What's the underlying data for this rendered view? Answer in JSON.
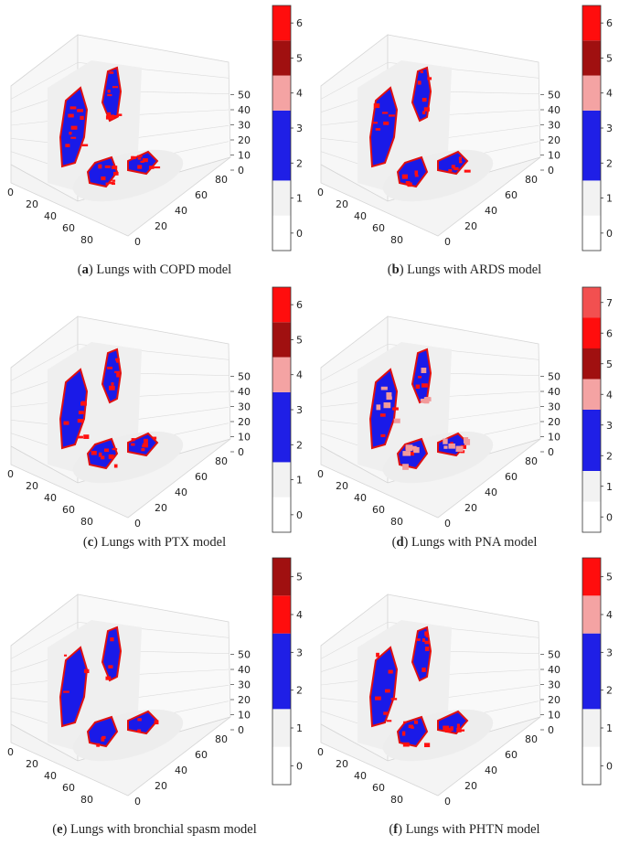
{
  "panels": [
    {
      "letter": "a",
      "caption_rest": "Lungs with COPD model",
      "cbar_ticks": [
        "0",
        "1",
        "2",
        "3",
        "4",
        "5",
        "6"
      ],
      "cbar_bands": [
        [
          "#ffffff",
          0,
          1
        ],
        [
          "#f2f2f2",
          1,
          2
        ],
        [
          "#1f1fe6",
          2,
          4
        ],
        [
          "#f4a3a3",
          4,
          5
        ],
        [
          "#a01010",
          5,
          6
        ],
        [
          "#ff0d0d",
          6,
          7
        ]
      ],
      "z_ticks": [
        "0",
        "10",
        "20",
        "30",
        "40",
        "50"
      ],
      "x_ticks": [
        "0",
        "20",
        "40",
        "60",
        "80"
      ],
      "y_ticks": [
        "0",
        "20",
        "40",
        "60",
        "80"
      ],
      "red": 0.45,
      "pink": 0.0
    },
    {
      "letter": "b",
      "caption_rest": "Lungs with ARDS model",
      "cbar_ticks": [
        "0",
        "1",
        "2",
        "3",
        "4",
        "5",
        "6"
      ],
      "cbar_bands": [
        [
          "#ffffff",
          0,
          1
        ],
        [
          "#f2f2f2",
          1,
          2
        ],
        [
          "#1f1fe6",
          2,
          4
        ],
        [
          "#f4a3a3",
          4,
          5
        ],
        [
          "#a01010",
          5,
          6
        ],
        [
          "#ff0d0d",
          6,
          7
        ]
      ],
      "z_ticks": [
        "0",
        "10",
        "20",
        "30",
        "40",
        "50"
      ],
      "x_ticks": [
        "0",
        "20",
        "40",
        "60",
        "80"
      ],
      "y_ticks": [
        "0",
        "20",
        "40",
        "60",
        "80"
      ],
      "red": 0.3,
      "pink": 0.0
    },
    {
      "letter": "c",
      "caption_rest": "Lungs with PTX model",
      "cbar_ticks": [
        "0",
        "1",
        "2",
        "3",
        "4",
        "5",
        "6"
      ],
      "cbar_bands": [
        [
          "#ffffff",
          0,
          1
        ],
        [
          "#f2f2f2",
          1,
          2
        ],
        [
          "#1f1fe6",
          2,
          4
        ],
        [
          "#f4a3a3",
          4,
          5
        ],
        [
          "#a01010",
          5,
          6
        ],
        [
          "#ff0d0d",
          6,
          7
        ]
      ],
      "z_ticks": [
        "0",
        "10",
        "20",
        "30",
        "40",
        "50"
      ],
      "x_ticks": [
        "0",
        "20",
        "40",
        "60",
        "80"
      ],
      "y_ticks": [
        "0",
        "20",
        "40",
        "60",
        "80"
      ],
      "red": 0.35,
      "pink": 0.0
    },
    {
      "letter": "d",
      "caption_rest": "Lungs with PNA model",
      "cbar_ticks": [
        "0",
        "1",
        "2",
        "3",
        "4",
        "5",
        "6",
        "7"
      ],
      "cbar_bands": [
        [
          "#ffffff",
          0,
          1
        ],
        [
          "#f2f2f2",
          1,
          2
        ],
        [
          "#1f1fe6",
          2,
          4
        ],
        [
          "#f4a3a3",
          4,
          5
        ],
        [
          "#a01010",
          5,
          6
        ],
        [
          "#ff0d0d",
          6,
          7
        ],
        [
          "#f25050",
          7,
          8
        ]
      ],
      "z_ticks": [
        "0",
        "10",
        "20",
        "30",
        "40",
        "50"
      ],
      "x_ticks": [
        "0",
        "20",
        "40",
        "60",
        "80"
      ],
      "y_ticks": [
        "0",
        "20",
        "40",
        "60",
        "80"
      ],
      "red": 0.15,
      "pink": 0.3
    },
    {
      "letter": "e",
      "caption_rest": "Lungs with bronchial spasm model",
      "cbar_ticks": [
        "0",
        "1",
        "2",
        "3",
        "4",
        "5"
      ],
      "cbar_bands": [
        [
          "#ffffff",
          0,
          1
        ],
        [
          "#f2f2f2",
          1,
          2
        ],
        [
          "#1f1fe6",
          2,
          4
        ],
        [
          "#ff0d0d",
          4,
          5
        ],
        [
          "#a01010",
          5,
          6
        ]
      ],
      "z_ticks": [
        "0",
        "10",
        "20",
        "30",
        "40",
        "50"
      ],
      "x_ticks": [
        "0",
        "20",
        "40",
        "60",
        "80"
      ],
      "y_ticks": [
        "0",
        "20",
        "40",
        "60",
        "80"
      ],
      "red": 0.15,
      "pink": 0.0
    },
    {
      "letter": "f",
      "caption_rest": "Lungs with PHTN model",
      "cbar_ticks": [
        "0",
        "1",
        "2",
        "3",
        "4",
        "5"
      ],
      "cbar_bands": [
        [
          "#ffffff",
          0,
          1
        ],
        [
          "#f2f2f2",
          1,
          2
        ],
        [
          "#1f1fe6",
          2,
          4
        ],
        [
          "#f4a3a3",
          4,
          5
        ],
        [
          "#ff0d0d",
          5,
          6
        ]
      ],
      "z_ticks": [
        "0",
        "10",
        "20",
        "30",
        "40",
        "50"
      ],
      "x_ticks": [
        "0",
        "20",
        "40",
        "60",
        "80"
      ],
      "y_ticks": [
        "0",
        "20",
        "40",
        "60",
        "80"
      ],
      "red": 0.35,
      "pink": 0.0
    }
  ],
  "chart_data": [
    {
      "type": "heatmap",
      "colorbar_ticks": [
        0,
        1,
        2,
        3,
        4,
        5,
        6
      ],
      "z_axis": [
        0,
        10,
        20,
        30,
        40,
        50
      ],
      "x_axis": [
        0,
        20,
        40,
        60,
        80
      ],
      "y_axis": [
        0,
        20,
        40,
        60,
        80
      ]
    },
    {
      "type": "heatmap",
      "colorbar_ticks": [
        0,
        1,
        2,
        3,
        4,
        5,
        6
      ],
      "z_axis": [
        0,
        10,
        20,
        30,
        40,
        50
      ],
      "x_axis": [
        0,
        20,
        40,
        60,
        80
      ],
      "y_axis": [
        0,
        20,
        40,
        60,
        80
      ]
    },
    {
      "type": "heatmap",
      "colorbar_ticks": [
        0,
        1,
        2,
        3,
        4,
        5,
        6
      ],
      "z_axis": [
        0,
        10,
        20,
        30,
        40,
        50
      ],
      "x_axis": [
        0,
        20,
        40,
        60,
        80
      ],
      "y_axis": [
        0,
        20,
        40,
        60,
        80
      ]
    },
    {
      "type": "heatmap",
      "colorbar_ticks": [
        0,
        1,
        2,
        3,
        4,
        5,
        6,
        7
      ],
      "z_axis": [
        0,
        10,
        20,
        30,
        40,
        50
      ],
      "x_axis": [
        0,
        20,
        40,
        60,
        80
      ],
      "y_axis": [
        0,
        20,
        40,
        60,
        80
      ]
    },
    {
      "type": "heatmap",
      "colorbar_ticks": [
        0,
        1,
        2,
        3,
        4,
        5
      ],
      "z_axis": [
        0,
        10,
        20,
        30,
        40,
        50
      ],
      "x_axis": [
        0,
        20,
        40,
        60,
        80
      ],
      "y_axis": [
        0,
        20,
        40,
        60,
        80
      ]
    },
    {
      "type": "heatmap",
      "colorbar_ticks": [
        0,
        1,
        2,
        3,
        4,
        5
      ],
      "z_axis": [
        0,
        10,
        20,
        30,
        40,
        50
      ],
      "x_axis": [
        0,
        20,
        40,
        60,
        80
      ],
      "y_axis": [
        0,
        20,
        40,
        60,
        80
      ]
    }
  ]
}
